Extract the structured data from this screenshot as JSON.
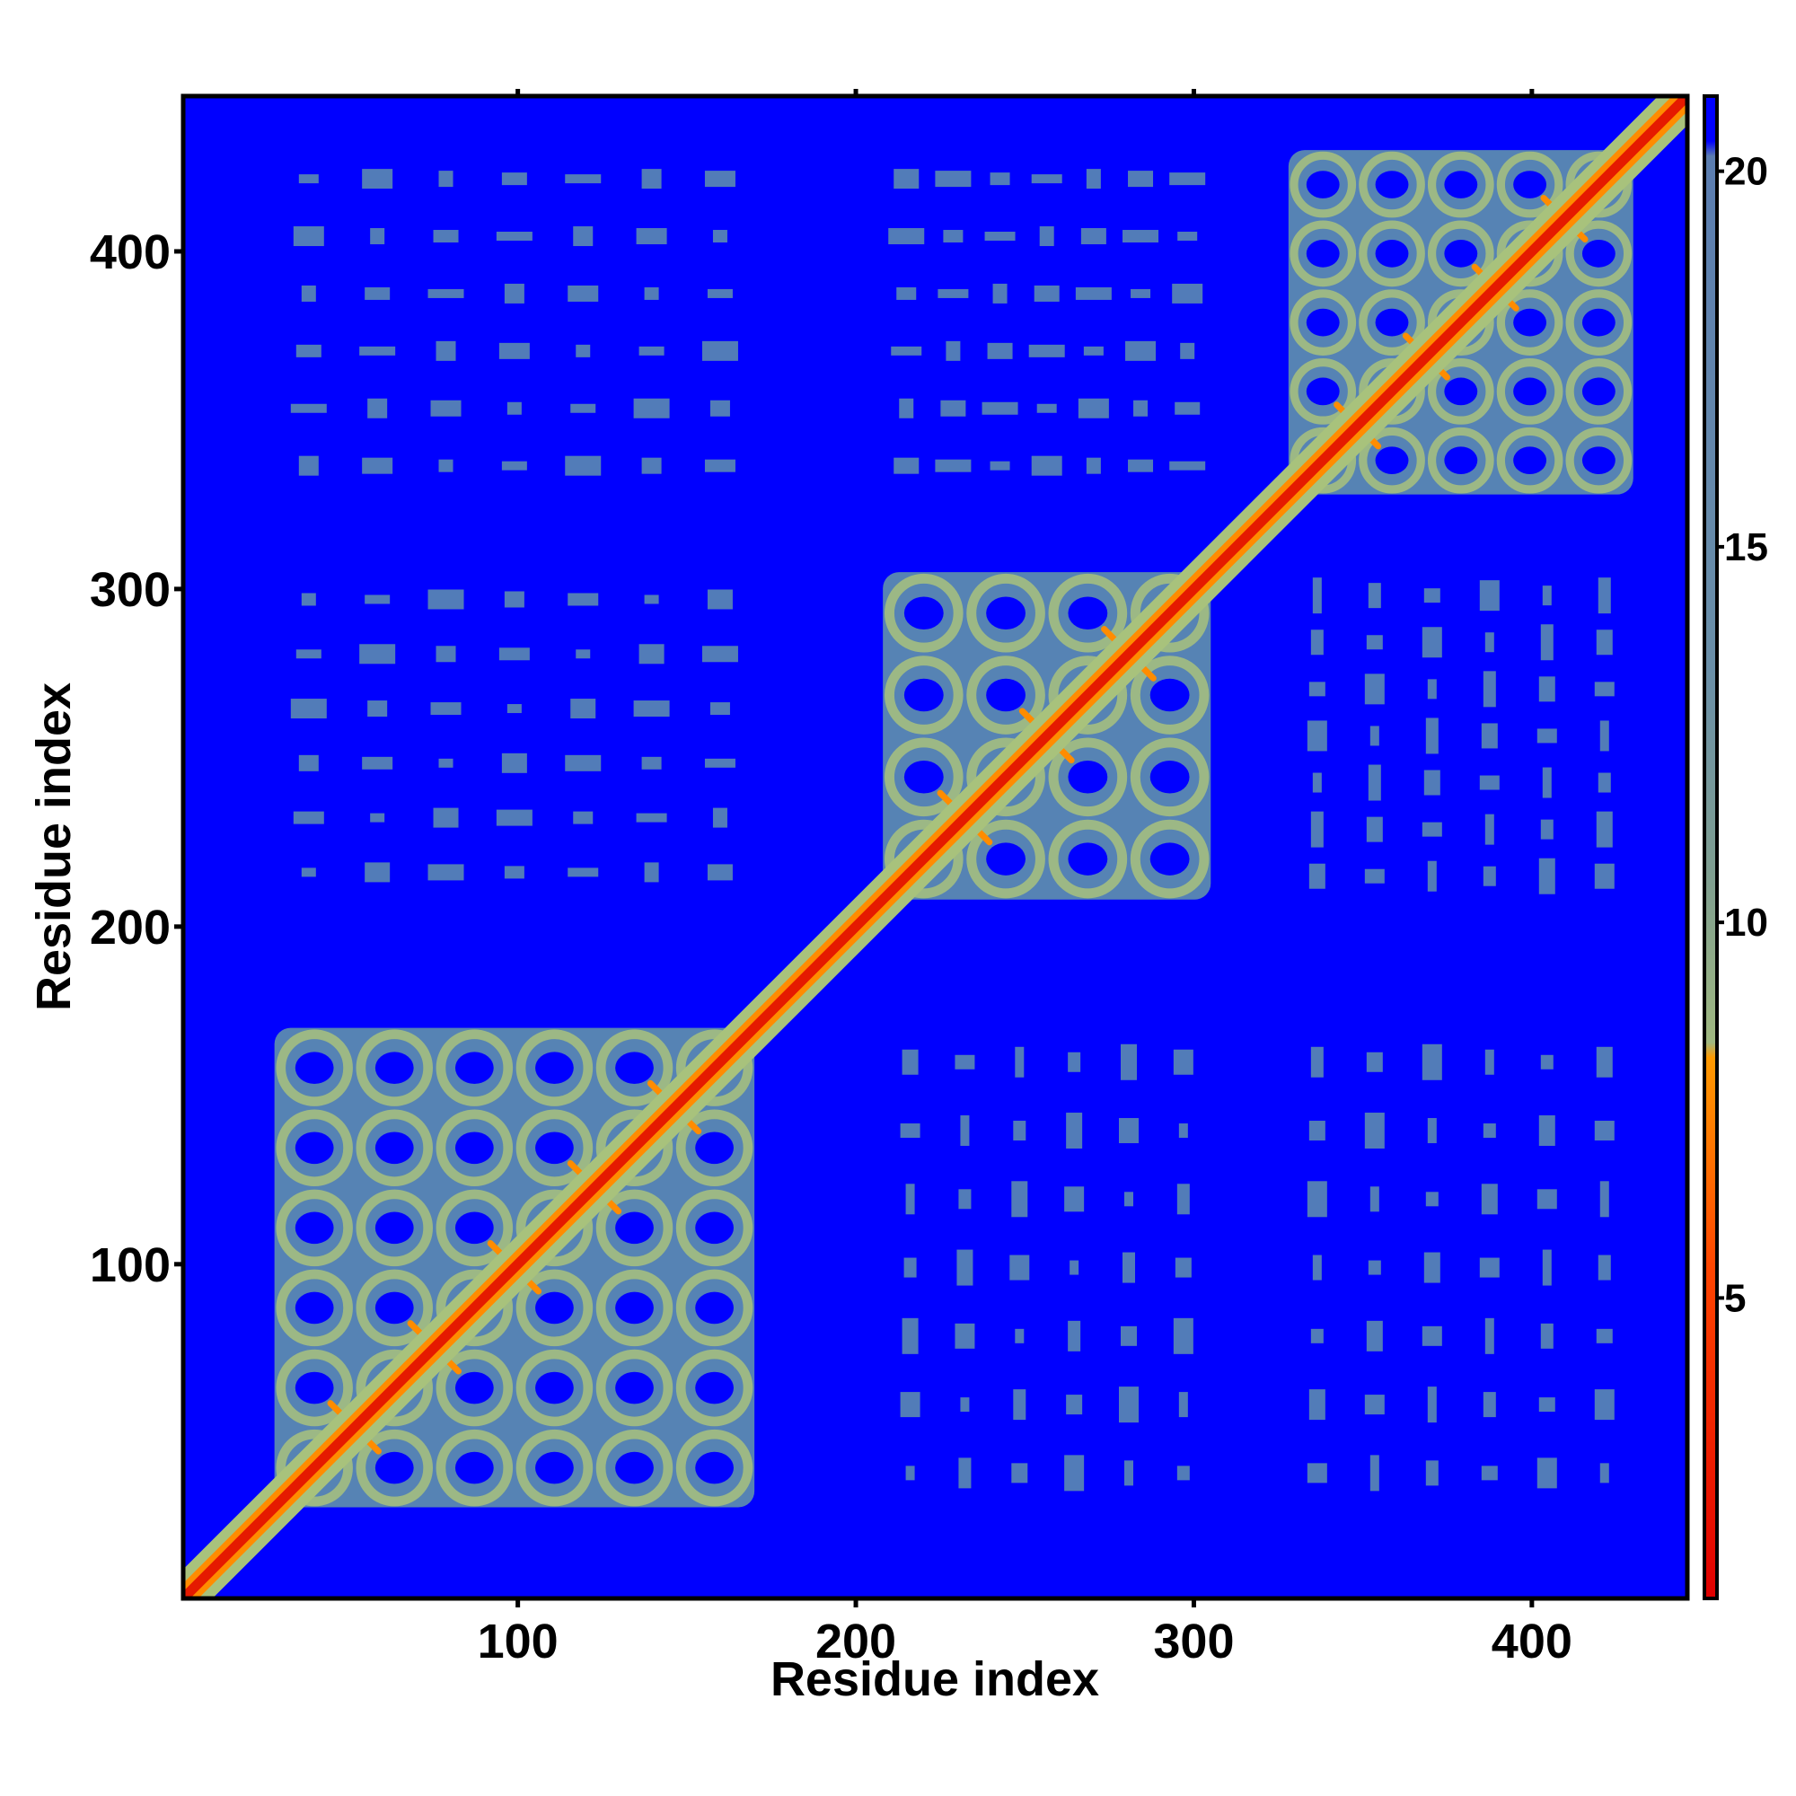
{
  "chart_data": {
    "type": "heatmap",
    "title": "",
    "xlabel": "Residue index",
    "ylabel": "Residue index",
    "xlim": [
      1,
      446
    ],
    "ylim": [
      1,
      446
    ],
    "x_ticks": [
      100,
      200,
      300,
      400
    ],
    "y_ticks": [
      100,
      200,
      300,
      400
    ],
    "colorbar": {
      "ticks": [
        5,
        10,
        15,
        20
      ],
      "range": [
        1,
        21
      ],
      "colors": {
        "low": "#e00000",
        "mid_low": "#ff8a00",
        "mid": "#9ab878",
        "mid_high": "#5a86b0",
        "high": "#0000ff"
      }
    },
    "colors": {
      "background": "#0000ff",
      "diagonal": "#e51a00",
      "contact_orange": "#ff8c00",
      "halo_yellowgreen": "#a8c27c",
      "domain_steelblue": "#5683b4"
    },
    "domains": [
      {
        "start": 28,
        "end": 170
      },
      {
        "start": 208,
        "end": 305
      },
      {
        "start": 328,
        "end": 430
      }
    ],
    "ellipsis_note": "",
    "tick_texts": {
      "x": [
        "100",
        "200",
        "300",
        "400"
      ],
      "y": [
        "100",
        "200",
        "300",
        "400"
      ],
      "colorbar": [
        "5",
        "10",
        "15",
        "20"
      ]
    }
  }
}
